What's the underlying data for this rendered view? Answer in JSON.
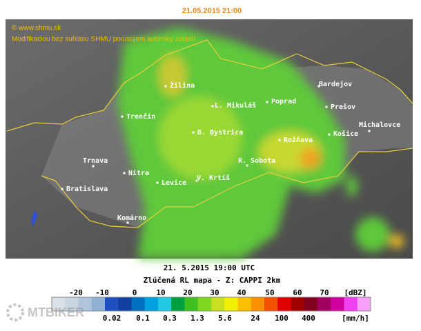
{
  "header": {
    "title": "21.05.2015 21:00"
  },
  "map": {
    "credits": [
      "© www.shmu.sk",
      "Modifikaciou bez suhlasu SHMU porusujem autorsky zakon!"
    ],
    "cities": [
      {
        "label": "Žilina"
      },
      {
        "label": "Trenčín"
      },
      {
        "label": "L. Mikuláš"
      },
      {
        "label": "Poprad"
      },
      {
        "label": "Bardejov"
      },
      {
        "label": "Prešov"
      },
      {
        "label": "Michalovce"
      },
      {
        "label": "B. Bystrica"
      },
      {
        "label": "Košice"
      },
      {
        "label": "Rožňava"
      },
      {
        "label": "Trnava"
      },
      {
        "label": "R. Sobota"
      },
      {
        "label": "Nitra"
      },
      {
        "label": "Levice"
      },
      {
        "label": "V. Krtíš"
      },
      {
        "label": "Bratislava"
      },
      {
        "label": "Komárno"
      }
    ]
  },
  "caption": {
    "time": "21. 5.2015 19:00 UTC",
    "product": "Zlúčená RL mapa - Z: CAPPI 2km"
  },
  "legend": {
    "dbz_labels": [
      "-20",
      "-10",
      "0",
      "10",
      "20",
      "30",
      "40",
      "50",
      "60",
      "70"
    ],
    "dbz_unit": "[dBZ]",
    "rain_labels": [
      "0.02",
      "0.1",
      "0.3",
      "1.3",
      "5.6",
      "24",
      "100",
      "400"
    ],
    "rain_unit": "[mm/h]"
  },
  "watermark": "MTBIKER"
}
